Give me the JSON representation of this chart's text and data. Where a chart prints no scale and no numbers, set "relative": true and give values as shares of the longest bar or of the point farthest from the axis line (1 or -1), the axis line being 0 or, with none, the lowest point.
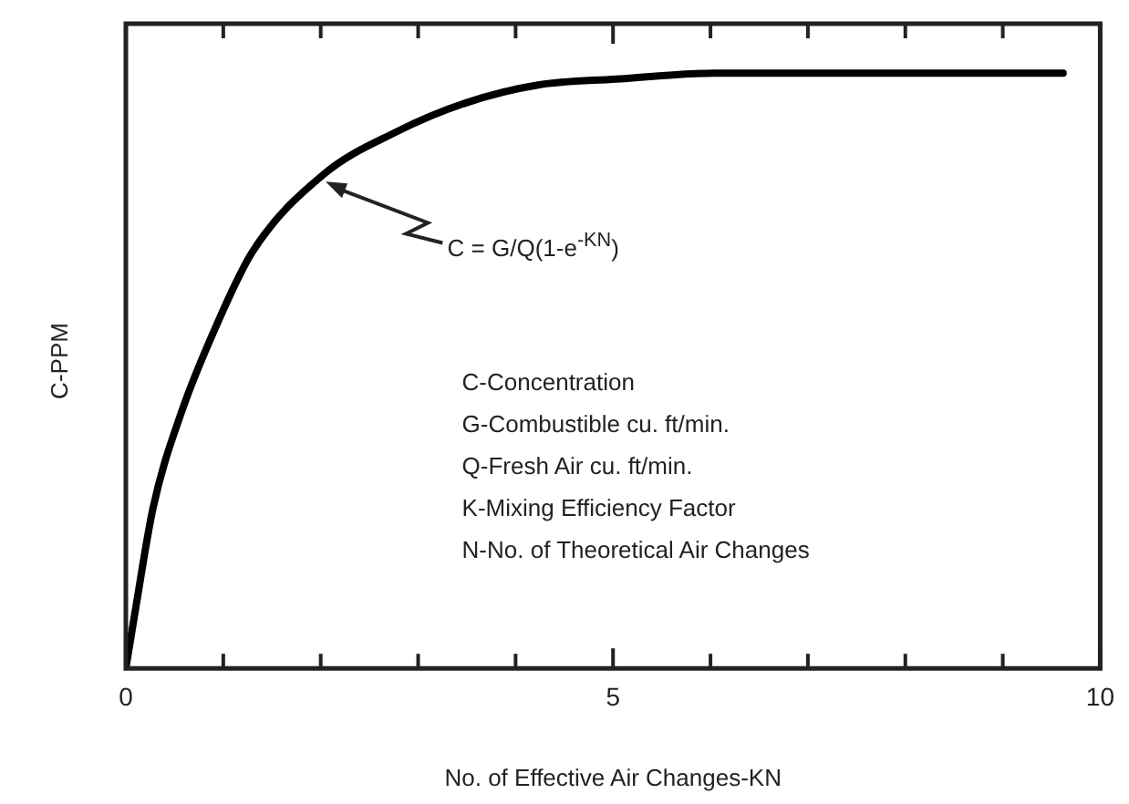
{
  "chart_data": {
    "type": "line",
    "relative": true,
    "xlabel": "No. of Effective Air Changes-KN",
    "ylabel": "C-PPM",
    "x": [
      0,
      0.1,
      0.28,
      0.57,
      0.94,
      1.3,
      2.03,
      2.76,
      3.49,
      4.23,
      5.03,
      6.05,
      9.62
    ],
    "series": [
      {
        "color": "#000000",
        "values": [
          0,
          0.1,
          0.27,
          0.43,
          0.58,
          0.7,
          0.83,
          0.9,
          0.95,
          0.98,
          0.99,
          1,
          1
        ]
      }
    ],
    "xlim": [
      0,
      10
    ],
    "xticks": [
      0,
      {
        "value": 1,
        "label": null
      },
      {
        "value": 2,
        "label": null
      },
      {
        "value": 3,
        "label": null
      },
      {
        "value": 4,
        "label": null
      },
      5,
      {
        "value": 6,
        "label": null
      },
      {
        "value": 7,
        "label": null
      },
      {
        "value": 8,
        "label": null
      },
      {
        "value": 9,
        "label": null
      },
      10
    ],
    "annotations": [
      "C = G/Q(1-e$^{-KN}$)",
      "C-Concentration",
      "G-Combustible cu. ft/min.",
      "Q-Fresh Air cu. ft/min.",
      "K-Mixing Efficiency Factor",
      "N-No. of Theoretical Air Changes"
    ],
    "grid": false,
    "legend": false,
    "marker": "none",
    "line_style": "solid"
  }
}
